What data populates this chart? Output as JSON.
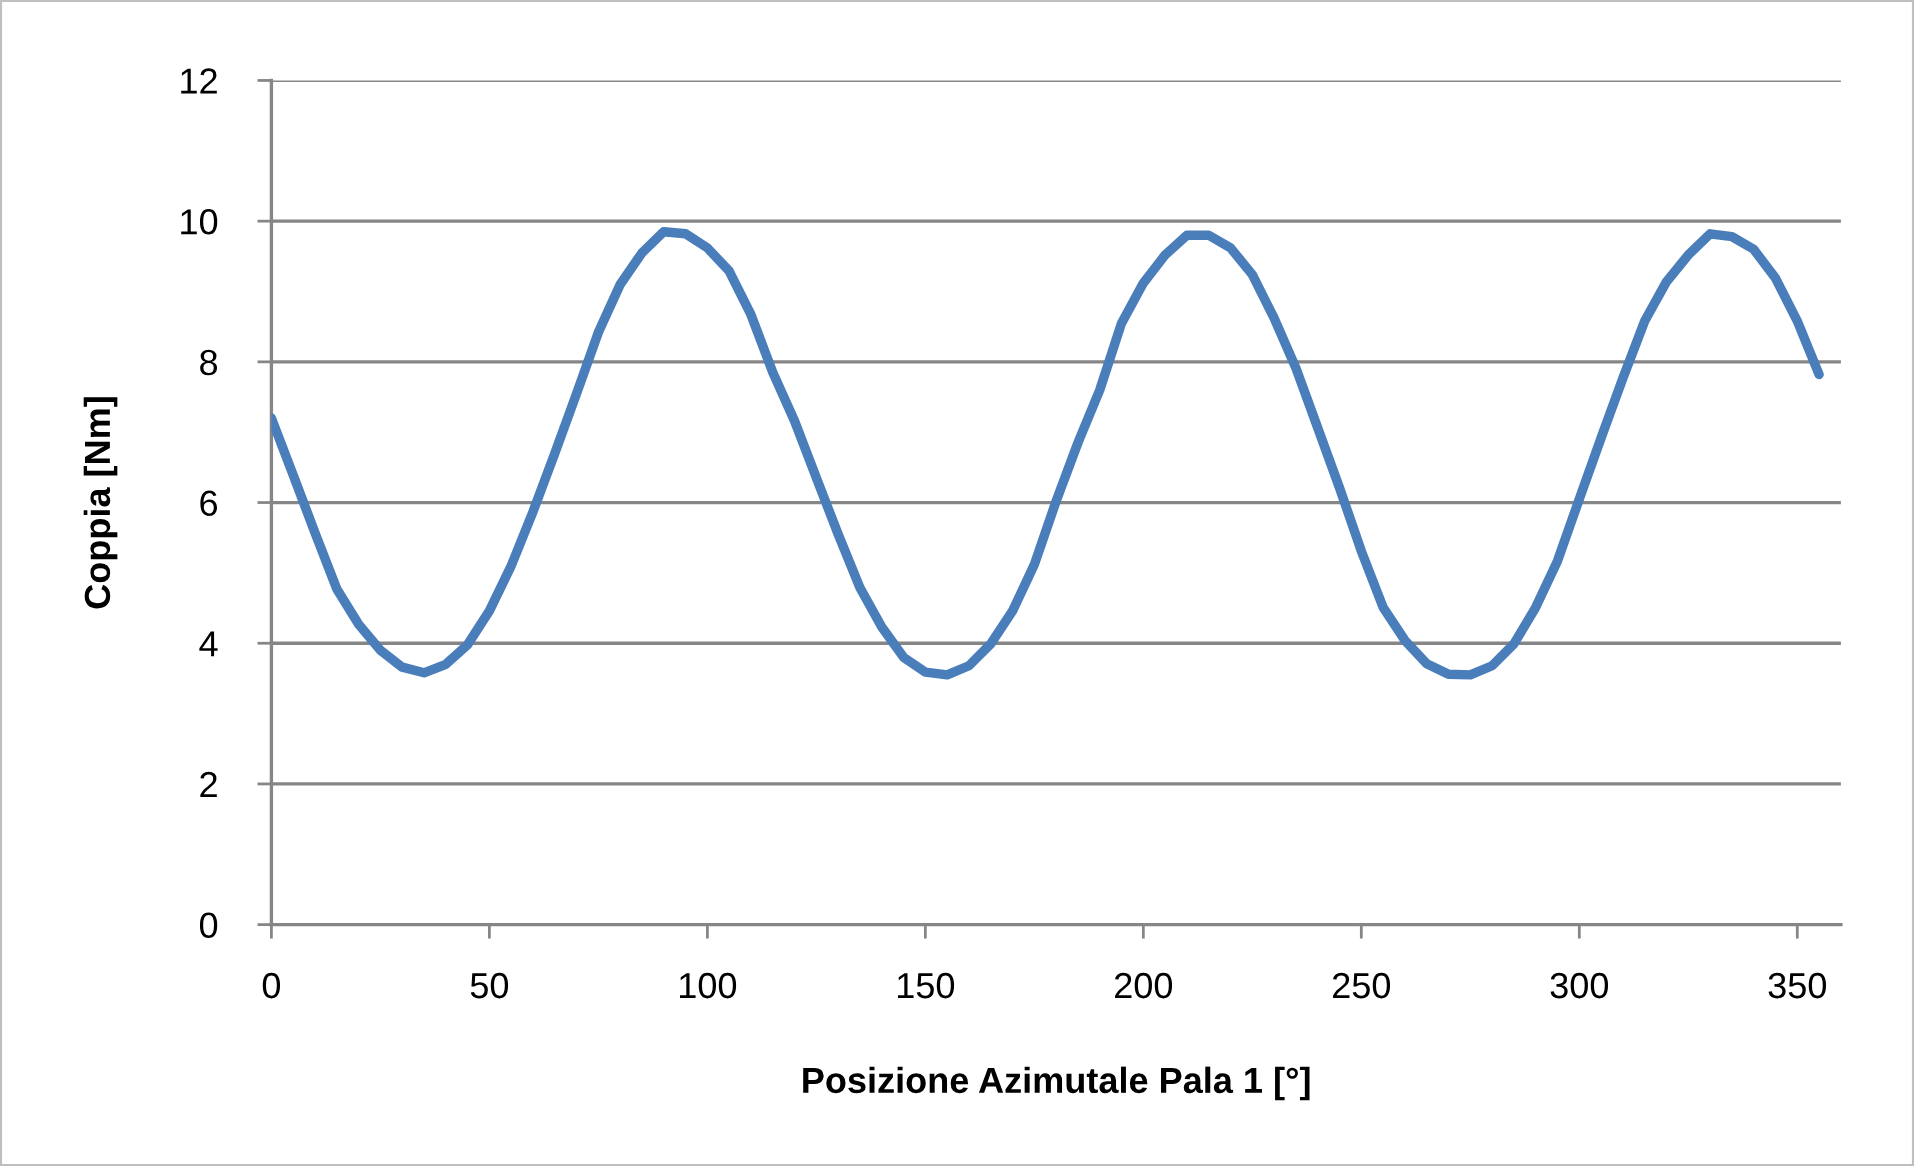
{
  "chart_data": {
    "type": "line",
    "xlabel": "Posizione Azimutale Pala 1 [°]",
    "ylabel": "Coppia [Nm]",
    "xlim": [
      0,
      360
    ],
    "xticks": [
      0,
      50,
      100,
      150,
      200,
      250,
      300,
      350
    ],
    "ylim": [
      0,
      12
    ],
    "yticks": [
      0,
      2,
      4,
      6,
      8,
      10,
      12
    ],
    "grid": "y",
    "marker": "none",
    "line_style": "solid",
    "series": [
      {
        "color": "#4a7ebb",
        "x": [
          0,
          5,
          10,
          15,
          20,
          25,
          30,
          35,
          40,
          45,
          50,
          55,
          60,
          65,
          70,
          75,
          80,
          85,
          90,
          95,
          100,
          105,
          110,
          115,
          120,
          125,
          130,
          135,
          140,
          145,
          150,
          155,
          160,
          165,
          170,
          175,
          180,
          185,
          190,
          195,
          200,
          205,
          210,
          215,
          220,
          225,
          230,
          235,
          240,
          245,
          250,
          255,
          260,
          265,
          270,
          275,
          280,
          285,
          290,
          295,
          300,
          305,
          310,
          315,
          320,
          325,
          330,
          335,
          340,
          345,
          350,
          355
        ],
        "values": [
          7.2,
          6.39,
          5.57,
          4.77,
          4.27,
          3.9,
          3.66,
          3.58,
          3.7,
          3.98,
          4.46,
          5.1,
          5.87,
          6.7,
          7.55,
          8.42,
          9.1,
          9.55,
          9.85,
          9.82,
          9.62,
          9.29,
          8.67,
          7.85,
          7.16,
          6.35,
          5.55,
          4.79,
          4.23,
          3.8,
          3.59,
          3.55,
          3.68,
          3.99,
          4.46,
          5.12,
          6.02,
          6.85,
          7.6,
          8.55,
          9.12,
          9.52,
          9.8,
          9.8,
          9.62,
          9.24,
          8.62,
          7.91,
          7.06,
          6.21,
          5.31,
          4.51,
          4.04,
          3.71,
          3.56,
          3.55,
          3.68,
          3.99,
          4.51,
          5.17,
          6.05,
          6.92,
          7.77,
          8.58,
          9.14,
          9.52,
          9.82,
          9.78,
          9.6,
          9.19,
          8.58,
          7.82
        ]
      }
    ]
  }
}
